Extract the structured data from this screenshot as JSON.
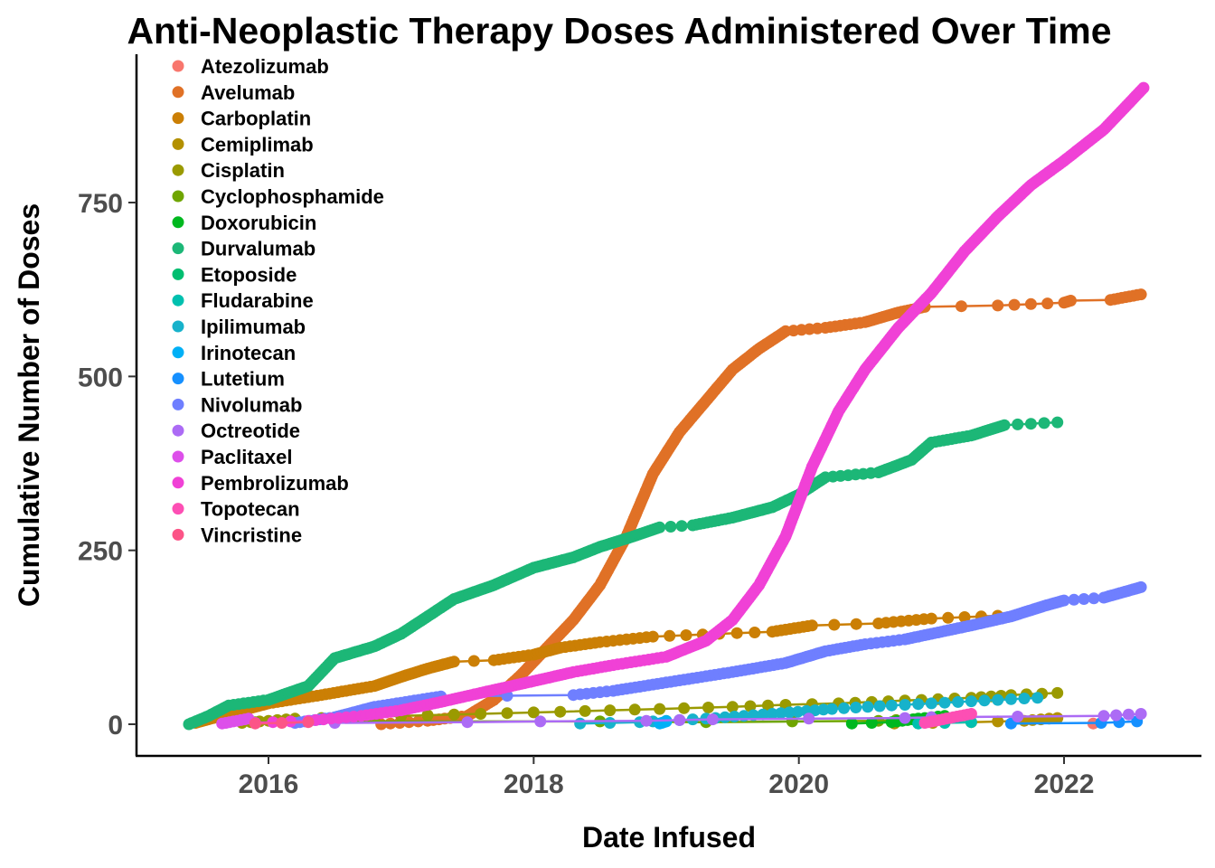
{
  "chart_data": {
    "type": "line",
    "title": "Anti-Neoplastic Therapy Doses Administered Over Time",
    "xlabel": "Date Infused",
    "ylabel": "Cumulative Number of Doses",
    "xlim": [
      2015.08,
      2023.1
    ],
    "ylim": [
      -45,
      945
    ],
    "x_ticks": [
      2016,
      2018,
      2020,
      2022
    ],
    "x_tick_labels": [
      "2016",
      "2018",
      "2020",
      "2022"
    ],
    "y_ticks": [
      0,
      250,
      500,
      750
    ],
    "y_tick_labels": [
      "0",
      "250",
      "500",
      "750"
    ],
    "grid": false,
    "legend_position": "top-left",
    "series": [
      {
        "name": "Atezolizumab",
        "color": "#F8766D",
        "points": [
          [
            2022.22,
            1
          ]
        ]
      },
      {
        "name": "Avelumab",
        "color": "#E18A00",
        "line_color": "#E07126",
        "points": [
          [
            2016.85,
            0
          ],
          [
            2017.2,
            5
          ],
          [
            2017.5,
            12
          ],
          [
            2017.7,
            35
          ],
          [
            2017.9,
            70
          ],
          [
            2018.1,
            110
          ],
          [
            2018.3,
            150
          ],
          [
            2018.5,
            200
          ],
          [
            2018.7,
            270
          ],
          [
            2018.9,
            360
          ],
          [
            2019.1,
            420
          ],
          [
            2019.3,
            465
          ],
          [
            2019.5,
            510
          ],
          [
            2019.7,
            540
          ],
          [
            2019.9,
            565
          ],
          [
            2020.2,
            570
          ],
          [
            2020.5,
            578
          ],
          [
            2020.75,
            592
          ],
          [
            2020.95,
            600
          ],
          [
            2021.5,
            602
          ],
          [
            2022.0,
            606
          ],
          [
            2022.05,
            609
          ],
          [
            2022.35,
            610
          ],
          [
            2022.58,
            618
          ]
        ]
      },
      {
        "name": "Carboplatin",
        "color": "#CB7F05",
        "points": [
          [
            2015.45,
            2
          ],
          [
            2015.7,
            15
          ],
          [
            2016.0,
            30
          ],
          [
            2016.4,
            42
          ],
          [
            2016.8,
            55
          ],
          [
            2017.0,
            68
          ],
          [
            2017.2,
            80
          ],
          [
            2017.4,
            90
          ],
          [
            2017.7,
            92
          ],
          [
            2018.0,
            100
          ],
          [
            2018.2,
            110
          ],
          [
            2018.5,
            118
          ],
          [
            2018.9,
            126
          ],
          [
            2019.4,
            130
          ],
          [
            2019.8,
            133
          ],
          [
            2020.1,
            142
          ],
          [
            2020.6,
            145
          ],
          [
            2021.0,
            152
          ],
          [
            2021.5,
            156
          ]
        ]
      },
      {
        "name": "Cemiplimab",
        "color": "#B39000",
        "points": [
          [
            2020.72,
            1
          ],
          [
            2021.3,
            3
          ],
          [
            2021.7,
            5
          ],
          [
            2021.95,
            9
          ]
        ]
      },
      {
        "name": "Cisplatin",
        "color": "#9A9A00",
        "points": [
          [
            2015.8,
            2
          ],
          [
            2016.2,
            8
          ],
          [
            2017.6,
            15
          ],
          [
            2018.2,
            18
          ],
          [
            2018.95,
            22
          ],
          [
            2019.5,
            25
          ],
          [
            2019.9,
            28
          ],
          [
            2020.3,
            30
          ],
          [
            2020.8,
            34
          ],
          [
            2021.3,
            38
          ],
          [
            2021.6,
            42
          ],
          [
            2021.95,
            45
          ]
        ]
      },
      {
        "name": "Cyclophosphamide",
        "color": "#6FA500",
        "points": [
          [
            2015.9,
            3
          ],
          [
            2016.3,
            4
          ],
          [
            2018.5,
            4
          ],
          [
            2019.3,
            3
          ],
          [
            2020.6,
            5
          ],
          [
            2021.0,
            8
          ]
        ]
      },
      {
        "name": "Doxorubicin",
        "color": "#00B81F",
        "points": [
          [
            2020.4,
            1
          ],
          [
            2020.7,
            3
          ],
          [
            2020.9,
            8
          ],
          [
            2021.1,
            12
          ]
        ]
      },
      {
        "name": "Durvalumab",
        "color": "#1CB777",
        "points": [
          [
            2015.4,
            0
          ],
          [
            2015.55,
            12
          ],
          [
            2015.7,
            27
          ],
          [
            2016.0,
            35
          ],
          [
            2016.3,
            55
          ],
          [
            2016.5,
            95
          ],
          [
            2016.8,
            112
          ],
          [
            2017.0,
            130
          ],
          [
            2017.2,
            155
          ],
          [
            2017.4,
            180
          ],
          [
            2017.7,
            200
          ],
          [
            2018.0,
            225
          ],
          [
            2018.3,
            240
          ],
          [
            2018.5,
            255
          ],
          [
            2018.75,
            270
          ],
          [
            2018.95,
            283
          ],
          [
            2019.2,
            286
          ],
          [
            2019.5,
            297
          ],
          [
            2019.8,
            312
          ],
          [
            2020.0,
            330
          ],
          [
            2020.2,
            355
          ],
          [
            2020.6,
            362
          ],
          [
            2020.85,
            380
          ],
          [
            2021.0,
            405
          ],
          [
            2021.3,
            415
          ],
          [
            2021.55,
            430
          ],
          [
            2021.95,
            434
          ]
        ]
      },
      {
        "name": "Etoposide",
        "color": "#00BE70",
        "points": []
      },
      {
        "name": "Fludarabine",
        "color": "#00C0AF",
        "points": [
          [
            2020.9,
            1
          ],
          [
            2021.3,
            3
          ]
        ]
      },
      {
        "name": "Ipilimumab",
        "color": "#17B2CB",
        "points": [
          [
            2018.35,
            1
          ],
          [
            2018.8,
            3
          ],
          [
            2019.3,
            8
          ],
          [
            2019.8,
            15
          ],
          [
            2020.25,
            22
          ],
          [
            2020.7,
            27
          ],
          [
            2021.0,
            30
          ],
          [
            2021.5,
            35
          ],
          [
            2021.8,
            38
          ]
        ]
      },
      {
        "name": "Irinotecan",
        "color": "#00B0F6",
        "points": [
          [
            2018.95,
            1
          ],
          [
            2019.0,
            4
          ]
        ]
      },
      {
        "name": "Lutetium",
        "color": "#1690FF",
        "points": [
          [
            2021.6,
            1
          ],
          [
            2022.28,
            2
          ],
          [
            2022.55,
            4
          ]
        ]
      },
      {
        "name": "Nivolumab",
        "color": "#6F7FFF",
        "points": [
          [
            2016.2,
            2
          ],
          [
            2016.5,
            10
          ],
          [
            2016.8,
            25
          ],
          [
            2017.3,
            40
          ],
          [
            2018.3,
            42
          ],
          [
            2018.6,
            48
          ],
          [
            2019.0,
            60
          ],
          [
            2019.5,
            75
          ],
          [
            2019.9,
            88
          ],
          [
            2020.2,
            105
          ],
          [
            2020.5,
            115
          ],
          [
            2020.8,
            122
          ],
          [
            2021.0,
            130
          ],
          [
            2021.3,
            142
          ],
          [
            2021.6,
            155
          ],
          [
            2021.85,
            170
          ],
          [
            2022.0,
            178
          ],
          [
            2022.3,
            182
          ],
          [
            2022.58,
            197
          ]
        ]
      },
      {
        "name": "Octreotide",
        "color": "#AC6BF5",
        "points": [
          [
            2016.5,
            2
          ],
          [
            2017.5,
            3
          ],
          [
            2018.05,
            4
          ],
          [
            2018.85,
            5
          ],
          [
            2019.35,
            7
          ],
          [
            2020.8,
            9
          ],
          [
            2021.0,
            10
          ],
          [
            2022.3,
            12
          ],
          [
            2022.58,
            15
          ]
        ]
      },
      {
        "name": "Paclitaxel",
        "color": "#DD4FEA",
        "points": [
          [
            2015.65,
            1
          ],
          [
            2015.85,
            8
          ]
        ]
      },
      {
        "name": "Pembrolizumab",
        "color": "#F041D6",
        "points": [
          [
            2015.9,
            2
          ],
          [
            2016.3,
            5
          ],
          [
            2016.7,
            12
          ],
          [
            2017.0,
            20
          ],
          [
            2017.3,
            32
          ],
          [
            2017.6,
            45
          ],
          [
            2018.0,
            62
          ],
          [
            2018.3,
            75
          ],
          [
            2018.6,
            85
          ],
          [
            2019.0,
            97
          ],
          [
            2019.3,
            120
          ],
          [
            2019.5,
            150
          ],
          [
            2019.7,
            200
          ],
          [
            2019.9,
            270
          ],
          [
            2020.1,
            370
          ],
          [
            2020.3,
            450
          ],
          [
            2020.5,
            510
          ],
          [
            2020.75,
            570
          ],
          [
            2021.0,
            620
          ],
          [
            2021.25,
            680
          ],
          [
            2021.5,
            730
          ],
          [
            2021.75,
            775
          ],
          [
            2022.0,
            810
          ],
          [
            2022.3,
            855
          ],
          [
            2022.6,
            915
          ]
        ]
      },
      {
        "name": "Topotecan",
        "color": "#FD4FB4",
        "points": [
          [
            2020.95,
            2
          ],
          [
            2021.3,
            15
          ]
        ]
      },
      {
        "name": "Vincristine",
        "color": "#FC5487",
        "points": [
          [
            2015.9,
            1
          ],
          [
            2016.3,
            3
          ]
        ]
      }
    ]
  }
}
